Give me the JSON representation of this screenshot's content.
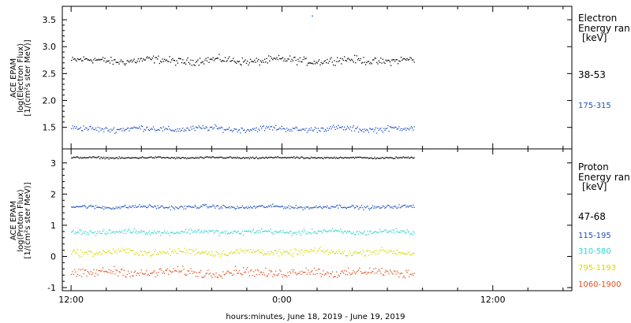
{
  "chart_data": [
    {
      "type": "scatter",
      "panel": "electron",
      "ylabel": [
        "ACE EPAM",
        "log(Electron Flux)",
        "[1/(cm²s ster MeV)]"
      ],
      "ylim": [
        1.1,
        3.75
      ],
      "yticks": [
        "1.5",
        "2.0",
        "2.5",
        "3.0",
        "3.5"
      ],
      "ytick_values": [
        1.5,
        2.0,
        2.5,
        3.0,
        3.5
      ],
      "legend_title": [
        "Electron",
        "Energy ran",
        "[keV]"
      ],
      "series": [
        {
          "name": "38-53",
          "color": "#000000",
          "center": 2.75,
          "noise": 0.06,
          "values_desc": "≈2.75 log flux, range 2.65–2.90"
        },
        {
          "name": "175-315",
          "color": "#1f4fbf",
          "center": 1.48,
          "noise": 0.045,
          "values_desc": "≈1.48 log flux, range 1.40–1.58"
        }
      ],
      "outlier": {
        "hours_from_start": 13.7,
        "y": 3.58
      }
    },
    {
      "type": "scatter",
      "panel": "proton",
      "ylabel": [
        "ACE EPAM",
        "log(Proton Flux)",
        "[1/(cm²s ster MeV)]"
      ],
      "ylim": [
        -1.1,
        3.45
      ],
      "yticks": [
        "-1",
        "0",
        "1",
        "2",
        "3"
      ],
      "ytick_values": [
        -1,
        0,
        1,
        2,
        3
      ],
      "legend_title": [
        "Proton",
        "Energy ran",
        "[keV]"
      ],
      "series": [
        {
          "name": "47-68",
          "color": "#000000",
          "center": 3.18,
          "noise": 0.025
        },
        {
          "name": "115-195",
          "color": "#1f4fbf",
          "center": 1.6,
          "noise": 0.05
        },
        {
          "name": "310-580",
          "color": "#2ad4d4",
          "center": 0.8,
          "noise": 0.07
        },
        {
          "name": "795-1193",
          "color": "#d8d800",
          "center": 0.15,
          "noise": 0.09
        },
        {
          "name": "1060-1900",
          "color": "#e2501e",
          "center": -0.5,
          "noise": 0.12
        }
      ]
    }
  ],
  "x_axis": {
    "ticks": [
      "12:00",
      "0:00",
      "12:00"
    ],
    "tick_hours": [
      0,
      12,
      24
    ],
    "range_hours": [
      -0.5,
      28.5
    ],
    "data_range_hours": [
      0,
      19.5
    ],
    "xlabel": "hours:minutes, June 18, 2019 - June 19, 2019"
  }
}
